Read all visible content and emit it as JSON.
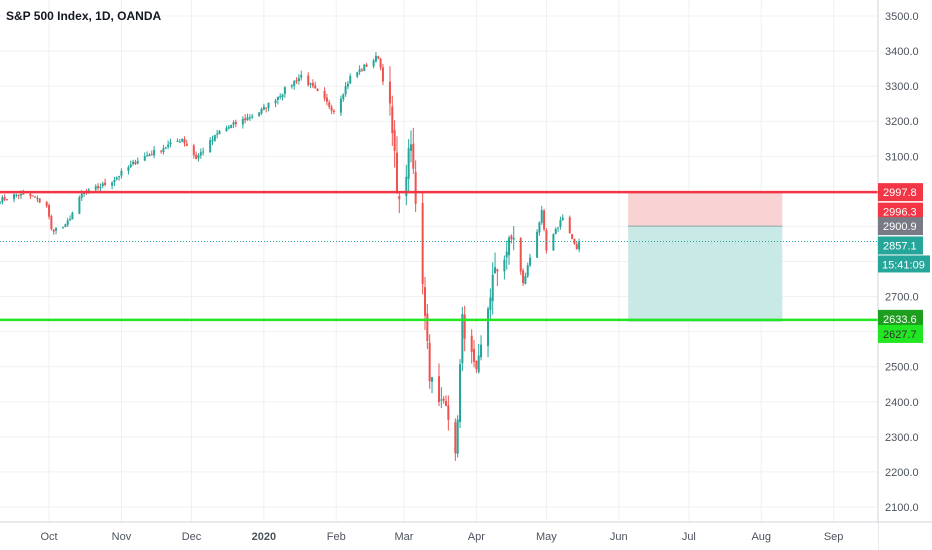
{
  "header": {
    "title": "S&P 500 Index, 1D, OANDA"
  },
  "colors": {
    "up": "#26a69a",
    "down": "#ef5350",
    "resistance_line": "#f23645",
    "support_line": "#22e622",
    "risk_zone": "#f9d2d3",
    "reward_zone": "#c8e9e6",
    "last_price_label": "#26a69a",
    "entry_label": "#787b86",
    "stop_label": "#f23645",
    "target_label": "#22e622",
    "grid": "#eef0f3",
    "axis_text": "#4c525e"
  },
  "chart_data": {
    "type": "candlestick",
    "title": "S&P 500 Index, 1D, OANDA",
    "y_axis": {
      "min": 2060,
      "max": 3535,
      "ticks": [
        2100,
        2200,
        2300,
        2400,
        2500,
        2600,
        2700,
        2800,
        2900,
        3000,
        3100,
        3200,
        3300,
        3400,
        3500
      ],
      "tick_labels": [
        "2100.0",
        "2200.0",
        "2300.0",
        "2400.0",
        "2500.0",
        "2600.0",
        "2700.0",
        "2800.0",
        "2900.0",
        "3000.0",
        "3100.0",
        "3200.0",
        "3300.0",
        "3400.0",
        "3500.0"
      ]
    },
    "x_axis": {
      "start": "2019-09-10",
      "end": "2020-09-20",
      "ticks": [
        {
          "date": "2019-10-01",
          "label": "Oct",
          "bold": false
        },
        {
          "date": "2019-11-01",
          "label": "Nov",
          "bold": false
        },
        {
          "date": "2019-12-01",
          "label": "Dec",
          "bold": false
        },
        {
          "date": "2020-01-01",
          "label": "2020",
          "bold": true
        },
        {
          "date": "2020-02-01",
          "label": "Feb",
          "bold": false
        },
        {
          "date": "2020-03-01",
          "label": "Mar",
          "bold": false
        },
        {
          "date": "2020-04-01",
          "label": "Apr",
          "bold": false
        },
        {
          "date": "2020-05-01",
          "label": "May",
          "bold": false
        },
        {
          "date": "2020-06-01",
          "label": "Jun",
          "bold": false
        },
        {
          "date": "2020-07-01",
          "label": "Jul",
          "bold": false
        },
        {
          "date": "2020-08-01",
          "label": "Aug",
          "bold": false
        },
        {
          "date": "2020-09-01",
          "label": "Sep",
          "bold": false
        }
      ]
    },
    "grid": true,
    "anchors": [
      [
        "2019-09-10",
        2975
      ],
      [
        "2019-09-17",
        2990
      ],
      [
        "2019-09-24",
        2985
      ],
      [
        "2019-09-30",
        2960
      ],
      [
        "2019-10-02",
        2890
      ],
      [
        "2019-10-08",
        2900
      ],
      [
        "2019-10-15",
        2990
      ],
      [
        "2019-10-28",
        3030
      ],
      [
        "2019-11-08",
        3090
      ],
      [
        "2019-11-27",
        3150
      ],
      [
        "2019-12-03",
        3095
      ],
      [
        "2019-12-13",
        3170
      ],
      [
        "2019-12-31",
        3230
      ],
      [
        "2020-01-17",
        3330
      ],
      [
        "2020-01-31",
        3230
      ],
      [
        "2020-02-07",
        3325
      ],
      [
        "2020-02-19",
        3385
      ],
      [
        "2020-02-24",
        3225
      ],
      [
        "2020-02-28",
        2955
      ],
      [
        "2020-03-04",
        3130
      ],
      [
        "2020-03-09",
        2750
      ],
      [
        "2020-03-12",
        2480
      ],
      [
        "2020-03-16",
        2390
      ],
      [
        "2020-03-19",
        2410
      ],
      [
        "2020-03-23",
        2235
      ],
      [
        "2020-03-26",
        2630
      ],
      [
        "2020-04-01",
        2470
      ],
      [
        "2020-04-08",
        2750
      ],
      [
        "2020-04-17",
        2875
      ],
      [
        "2020-04-21",
        2735
      ],
      [
        "2020-04-29",
        2940
      ],
      [
        "2020-05-01",
        2830
      ],
      [
        "2020-05-08",
        2930
      ],
      [
        "2020-05-14",
        2830
      ],
      [
        "2020-05-15",
        2857
      ]
    ],
    "last_price": 2857.1,
    "countdown": "15:41:09",
    "horizontal_lines": [
      {
        "name": "resistance",
        "value": 2997.8,
        "label": "2997.8"
      },
      {
        "name": "support",
        "value": 2633.6,
        "label": "2633.6"
      }
    ],
    "position_tool": {
      "start": "2020-06-05",
      "end": "2020-08-10",
      "entry": 2900.9,
      "stop": 2996.3,
      "target": 2627.7,
      "labels": {
        "entry": "2900.9",
        "stop": "2996.3",
        "target": "2627.7",
        "last": "2857.1"
      }
    }
  }
}
